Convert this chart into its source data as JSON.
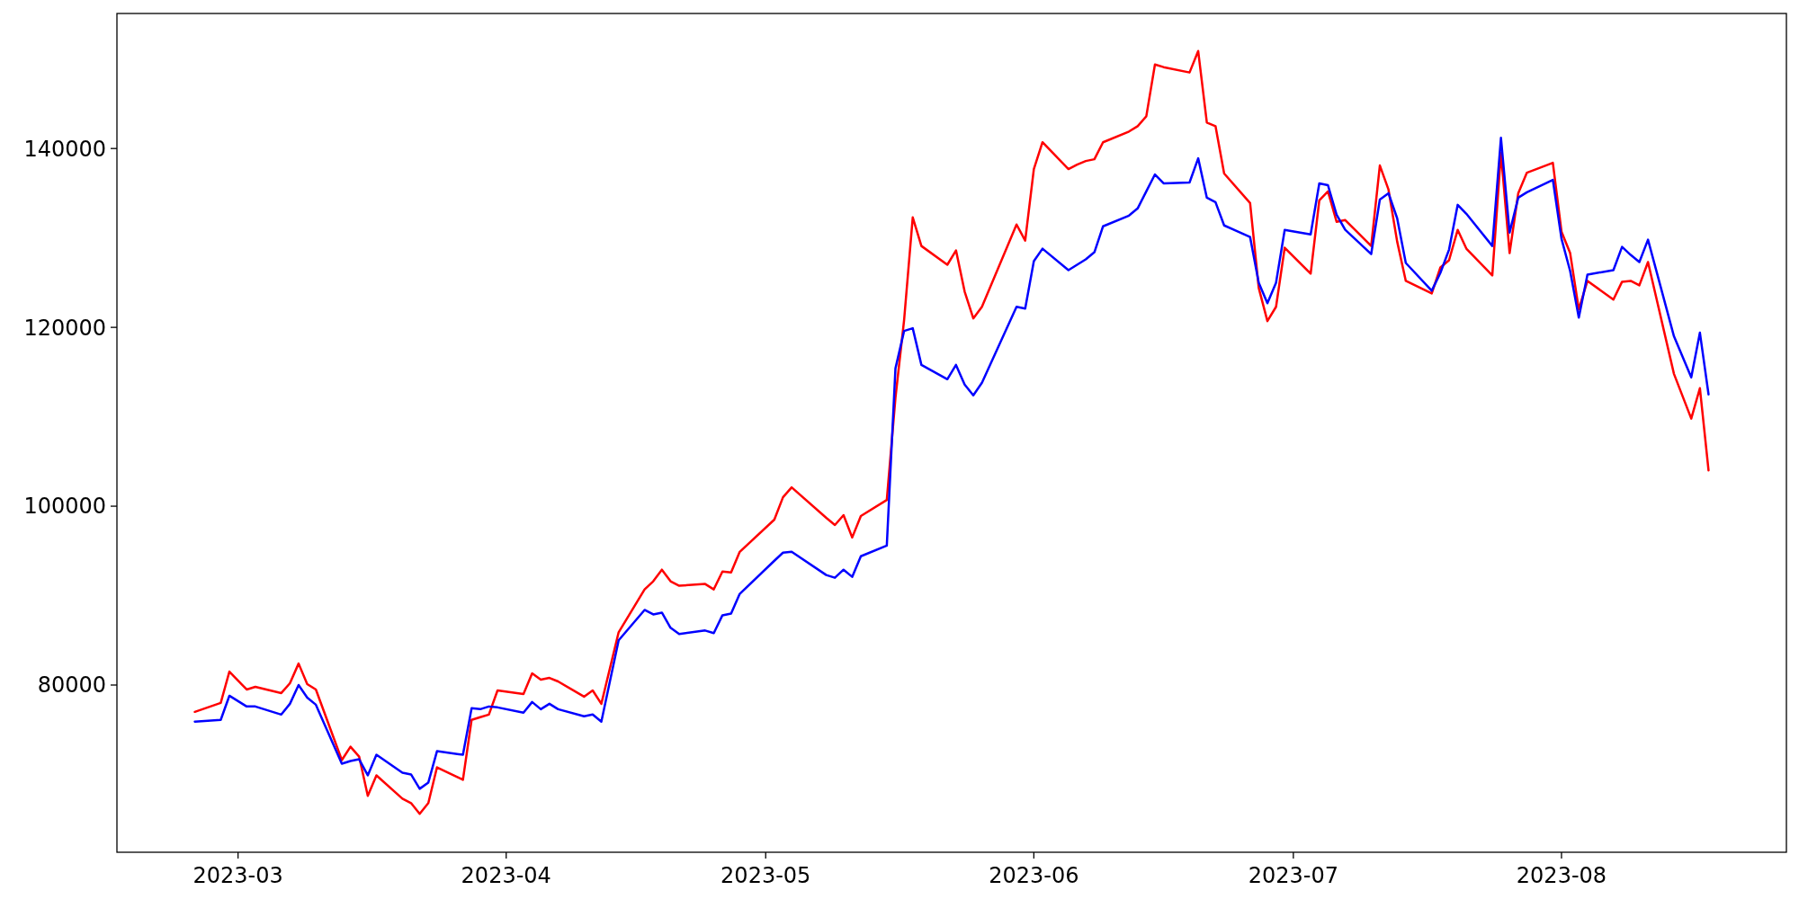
{
  "chart_data": {
    "type": "line",
    "x": [
      "2023-02-24",
      "2023-02-27",
      "2023-02-28",
      "2023-03-02",
      "2023-03-03",
      "2023-03-06",
      "2023-03-07",
      "2023-03-08",
      "2023-03-09",
      "2023-03-10",
      "2023-03-13",
      "2023-03-14",
      "2023-03-15",
      "2023-03-16",
      "2023-03-17",
      "2023-03-20",
      "2023-03-21",
      "2023-03-22",
      "2023-03-23",
      "2023-03-24",
      "2023-03-27",
      "2023-03-28",
      "2023-03-29",
      "2023-03-30",
      "2023-03-31",
      "2023-04-03",
      "2023-04-04",
      "2023-04-05",
      "2023-04-06",
      "2023-04-07",
      "2023-04-10",
      "2023-04-11",
      "2023-04-12",
      "2023-04-14",
      "2023-04-17",
      "2023-04-18",
      "2023-04-19",
      "2023-04-20",
      "2023-04-21",
      "2023-04-24",
      "2023-04-25",
      "2023-04-26",
      "2023-04-27",
      "2023-04-28",
      "2023-05-02",
      "2023-05-03",
      "2023-05-04",
      "2023-05-08",
      "2023-05-09",
      "2023-05-10",
      "2023-05-11",
      "2023-05-12",
      "2023-05-15",
      "2023-05-16",
      "2023-05-17",
      "2023-05-18",
      "2023-05-19",
      "2023-05-22",
      "2023-05-23",
      "2023-05-24",
      "2023-05-25",
      "2023-05-26",
      "2023-05-30",
      "2023-05-31",
      "2023-06-01",
      "2023-06-02",
      "2023-06-05",
      "2023-06-06",
      "2023-06-07",
      "2023-06-08",
      "2023-06-09",
      "2023-06-12",
      "2023-06-13",
      "2023-06-14",
      "2023-06-15",
      "2023-06-16",
      "2023-06-19",
      "2023-06-20",
      "2023-06-21",
      "2023-06-22",
      "2023-06-23",
      "2023-06-26",
      "2023-06-27",
      "2023-06-28",
      "2023-06-29",
      "2023-06-30",
      "2023-07-03",
      "2023-07-04",
      "2023-07-05",
      "2023-07-06",
      "2023-07-07",
      "2023-07-10",
      "2023-07-11",
      "2023-07-12",
      "2023-07-13",
      "2023-07-14",
      "2023-07-17",
      "2023-07-18",
      "2023-07-19",
      "2023-07-20",
      "2023-07-21",
      "2023-07-24",
      "2023-07-25",
      "2023-07-26",
      "2023-07-27",
      "2023-07-28",
      "2023-07-31",
      "2023-08-01",
      "2023-08-02",
      "2023-08-03",
      "2023-08-04",
      "2023-08-07",
      "2023-08-08",
      "2023-08-09",
      "2023-08-10",
      "2023-08-11",
      "2023-08-14",
      "2023-08-16",
      "2023-08-17",
      "2023-08-18"
    ],
    "series": [
      {
        "color": "#ff0000",
        "values": [
          77000,
          78000,
          81500,
          79500,
          79800,
          79100,
          80200,
          82400,
          80100,
          79500,
          71600,
          73100,
          72000,
          67600,
          69900,
          67300,
          66800,
          65600,
          66800,
          70800,
          69400,
          76100,
          76400,
          76700,
          79400,
          79000,
          81300,
          80600,
          80800,
          80400,
          78700,
          79400,
          77900,
          85900,
          90700,
          91600,
          92900,
          91600,
          91100,
          91300,
          90700,
          92700,
          92600,
          94900,
          98500,
          101000,
          102100,
          98700,
          97900,
          99000,
          96500,
          98900,
          100700,
          112100,
          120800,
          132300,
          129100,
          127000,
          128600,
          124000,
          121000,
          122300,
          131500,
          129700,
          137700,
          140700,
          137700,
          138200,
          138600,
          138800,
          140700,
          141900,
          142500,
          143600,
          149400,
          149100,
          148500,
          150900,
          142900,
          142500,
          137200,
          133900,
          124400,
          120700,
          122300,
          128900,
          126000,
          134200,
          135200,
          131800,
          132000,
          129100,
          138100,
          135400,
          129600,
          125200,
          123800,
          126700,
          127500,
          130900,
          128800,
          125800,
          139500,
          128300,
          135000,
          137300,
          138400,
          130700,
          128300,
          122000,
          125200,
          123100,
          125100,
          125200,
          124700,
          127300,
          114800,
          109800,
          113200,
          104000
        ]
      },
      {
        "color": "#0000ff",
        "values": [
          75900,
          76100,
          78800,
          77600,
          77600,
          76700,
          77900,
          80000,
          78600,
          77800,
          71200,
          71500,
          71700,
          69900,
          72200,
          70200,
          70000,
          68400,
          69100,
          72600,
          72200,
          77400,
          77300,
          77600,
          77500,
          76900,
          78100,
          77300,
          77900,
          77300,
          76500,
          76700,
          75900,
          85000,
          88400,
          87900,
          88100,
          86400,
          85700,
          86100,
          85800,
          87800,
          88000,
          90200,
          93900,
          94800,
          94900,
          92300,
          92000,
          92900,
          92100,
          94400,
          95600,
          115400,
          119600,
          119900,
          115800,
          114200,
          115800,
          113600,
          112400,
          113800,
          122300,
          122100,
          127400,
          128800,
          126400,
          127000,
          127600,
          128400,
          131300,
          132500,
          133300,
          135200,
          137100,
          136100,
          136200,
          138900,
          134500,
          134000,
          131400,
          130100,
          125000,
          122700,
          125000,
          130900,
          130400,
          136100,
          135900,
          132600,
          130900,
          128200,
          134300,
          135000,
          132200,
          127200,
          124100,
          126100,
          128700,
          133700,
          132700,
          129100,
          141200,
          130600,
          134500,
          135100,
          136500,
          129900,
          126300,
          121100,
          125900,
          126400,
          129000,
          128100,
          127300,
          129800,
          119000,
          114400,
          119400,
          112500
        ]
      }
    ],
    "xlim": [
      "2023-02-15",
      "2023-08-27"
    ],
    "xticks": [
      {
        "value": "2023-03-01",
        "label": "2023-03"
      },
      {
        "value": "2023-04-01",
        "label": "2023-04"
      },
      {
        "value": "2023-05-01",
        "label": "2023-05"
      },
      {
        "value": "2023-06-01",
        "label": "2023-06"
      },
      {
        "value": "2023-07-01",
        "label": "2023-07"
      },
      {
        "value": "2023-08-01",
        "label": "2023-08"
      }
    ],
    "ylim": [
      61300,
      155100
    ],
    "yticks": [
      80000,
      100000,
      120000,
      140000
    ]
  }
}
